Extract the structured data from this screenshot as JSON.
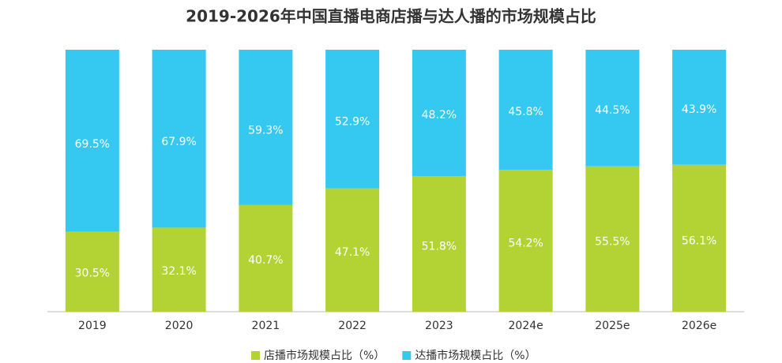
{
  "chart_data": {
    "type": "stacked_bar",
    "title": "2019-2026年中国直播电商店播与达人播的市场规模占比",
    "categories": [
      "2019",
      "2020",
      "2021",
      "2022",
      "2023",
      "2024e",
      "2025e",
      "2026e"
    ],
    "series": [
      {
        "name": "店播市场规模占比（%）",
        "color": "#b3d334",
        "values": [
          30.5,
          32.1,
          40.7,
          47.1,
          51.8,
          54.2,
          55.5,
          56.1
        ],
        "value_labels": [
          "30.5%",
          "32.1%",
          "40.7%",
          "47.1%",
          "51.8%",
          "54.2%",
          "55.5%",
          "56.1%"
        ]
      },
      {
        "name": "达播市场规模占比（%）",
        "color": "#35c9f2",
        "values": [
          69.5,
          67.9,
          59.3,
          52.9,
          48.2,
          45.8,
          44.5,
          43.9
        ],
        "value_labels": [
          "69.5%",
          "67.9%",
          "59.3%",
          "52.9%",
          "48.2%",
          "45.8%",
          "44.5%",
          "43.9%"
        ]
      }
    ],
    "ylim": [
      0,
      100
    ]
  }
}
